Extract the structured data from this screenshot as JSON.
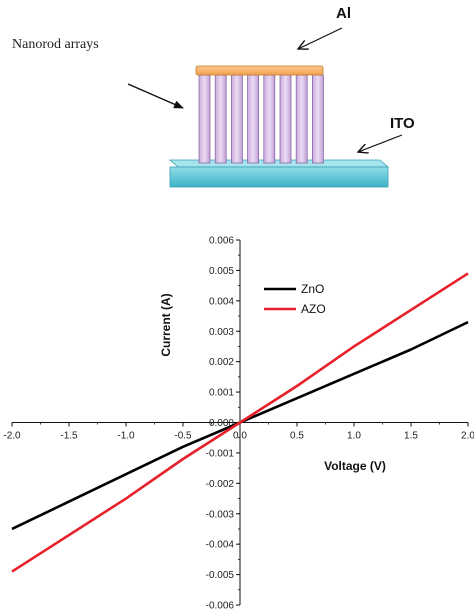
{
  "schematic": {
    "nanorod_label": "Nanorod arrays",
    "al_label": "Al",
    "ito_label": "ITO",
    "colors": {
      "al_layer": "#f6b36b",
      "rods": "#d8bde8",
      "rod_edge": "#8a6aa3",
      "ito_layer": "#5fc6d8"
    }
  },
  "chart_data": {
    "type": "line",
    "xlabel": "Voltage (V)",
    "ylabel": "Current (A)",
    "xlim": [
      -2.0,
      2.0
    ],
    "ylim": [
      -0.006,
      0.006
    ],
    "x_ticks": [
      "-2.0",
      "-1.5",
      "-1.0",
      "-0.5",
      "0.0",
      "0.5",
      "1.0",
      "1.5",
      "2.0"
    ],
    "y_ticks": [
      "0.006",
      "0.005",
      "0.004",
      "0.003",
      "0.002",
      "0.001",
      "0.000",
      "-0.001",
      "-0.002",
      "-0.003",
      "-0.004",
      "-0.005",
      "-0.006"
    ],
    "grid": false,
    "legend_position": "top-left",
    "series": [
      {
        "name": "ZnO",
        "color": "#000000",
        "x": [
          -2.0,
          -1.5,
          -1.0,
          -0.5,
          0.0,
          0.5,
          1.0,
          1.5,
          2.0
        ],
        "y": [
          -0.0035,
          -0.0026,
          -0.0017,
          -0.0008,
          0.0,
          0.0008,
          0.0016,
          0.0024,
          0.0033
        ]
      },
      {
        "name": "AZO",
        "color": "#e8202a",
        "x": [
          -2.0,
          -1.5,
          -1.0,
          -0.5,
          0.0,
          0.5,
          1.0,
          1.5,
          2.0
        ],
        "y": [
          -0.0049,
          -0.0037,
          -0.0025,
          -0.0012,
          0.0,
          0.0012,
          0.0025,
          0.0037,
          0.0049
        ]
      }
    ]
  }
}
